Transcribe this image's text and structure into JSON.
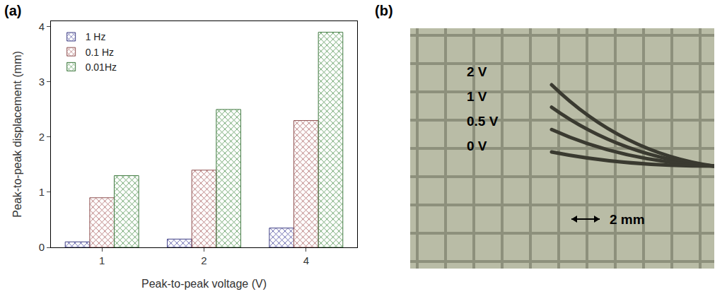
{
  "chart_data": {
    "type": "bar",
    "panel_label": "(a)",
    "x_label": "Peak-to-peak voltage (V)",
    "y_label": "Peak-to-peak displacement (mm)",
    "categories": [
      "1",
      "2",
      "4"
    ],
    "series": [
      {
        "name": "1 Hz",
        "color": "#6a6ae0",
        "values": [
          0.1,
          0.15,
          0.35
        ]
      },
      {
        "name": "0.1 Hz",
        "color": "#f28c8c",
        "values": [
          0.9,
          1.4,
          2.3
        ]
      },
      {
        "name": "0.01Hz",
        "color": "#6fcf6f",
        "values": [
          1.3,
          2.5,
          3.9
        ]
      }
    ],
    "ylim": [
      0,
      4.1
    ],
    "yticks": [
      0,
      1,
      2,
      3,
      4
    ],
    "grid": false,
    "legend": "top-left"
  },
  "photo": {
    "panel_label": "(b)",
    "curve_labels": [
      "2 V",
      "1 V",
      "0.5 V",
      "0 V"
    ],
    "scale_bar": "2 mm"
  }
}
